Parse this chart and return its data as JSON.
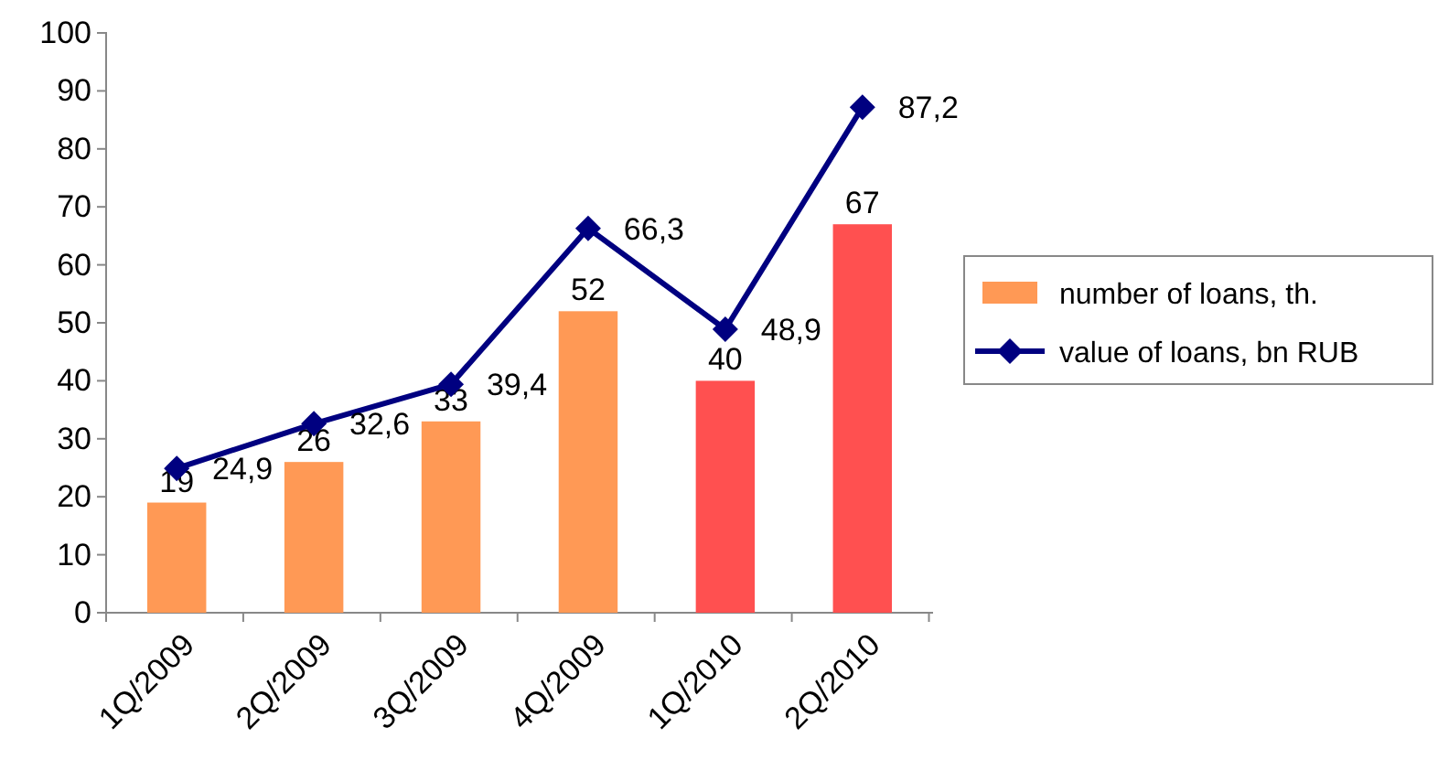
{
  "chart_data": {
    "type": "bar",
    "categories": [
      "1Q/2009",
      "2Q/2009",
      "3Q/2009",
      "4Q/2009",
      "1Q/2010",
      "2Q/2010"
    ],
    "series": [
      {
        "name": "number of loans, th.",
        "color": "#ff9955",
        "colors": [
          "#ff9955",
          "#ff9955",
          "#ff9955",
          "#ff9955",
          "#ff5050",
          "#ff5050"
        ],
        "values": [
          19,
          26,
          33,
          52,
          40,
          67
        ],
        "value_labels": [
          "19",
          "26",
          "33",
          "52",
          "40",
          "67"
        ]
      },
      {
        "name": "value of loans, bn RUB",
        "type": "line",
        "color": "#000080",
        "marker": "diamond",
        "values": [
          24.9,
          32.6,
          39.4,
          66.3,
          48.9,
          87.2
        ],
        "value_labels": [
          "24,9",
          "32,6",
          "39,4",
          "66,3",
          "48,9",
          "87,2"
        ]
      }
    ],
    "ylim": [
      0,
      100
    ],
    "yticks": [
      0,
      10,
      20,
      30,
      40,
      50,
      60,
      70,
      80,
      90,
      100
    ],
    "grid": false,
    "legend": "right"
  }
}
